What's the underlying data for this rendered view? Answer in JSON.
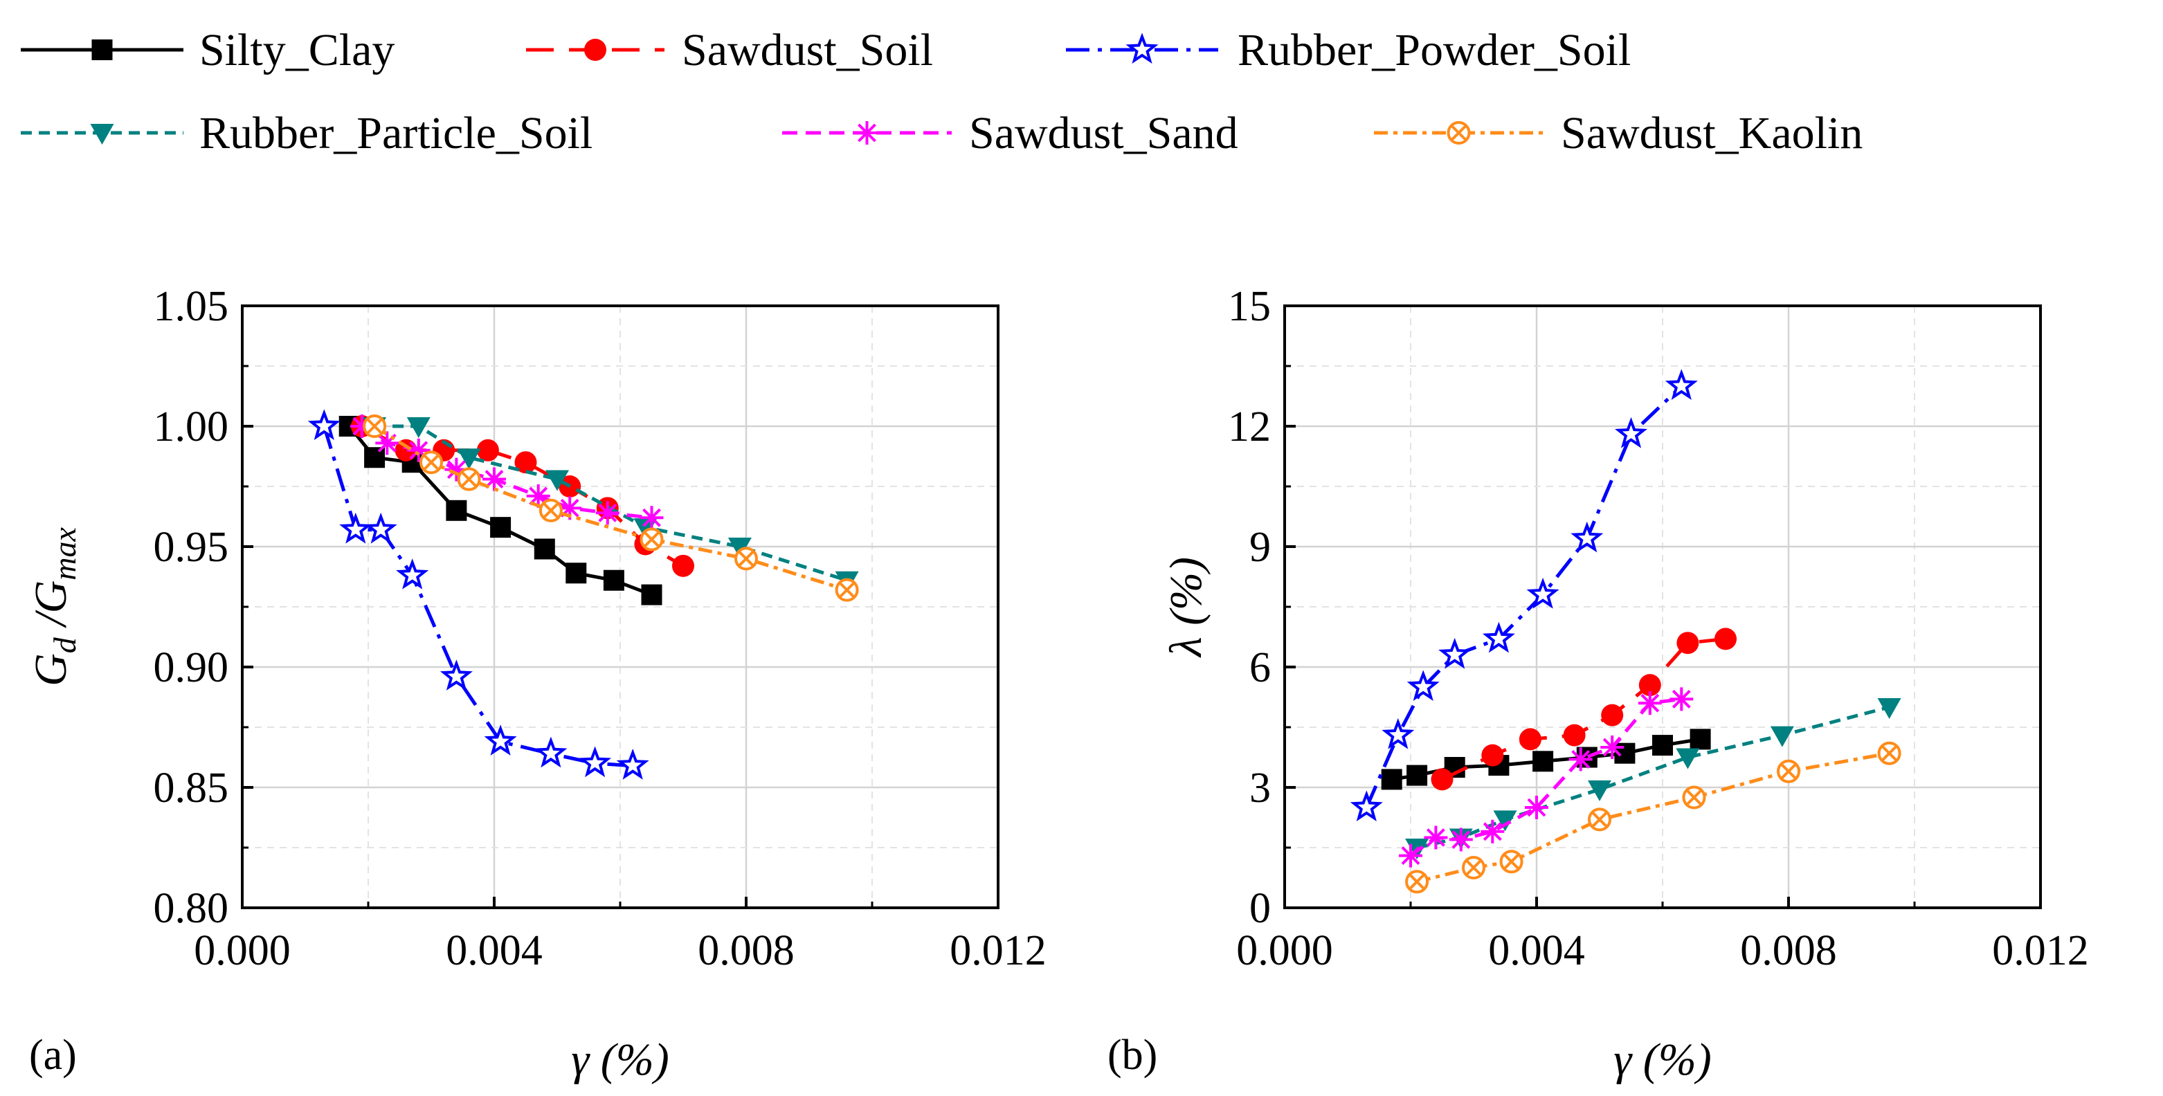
{
  "legend": {
    "items": [
      {
        "label": "Silty_Clay",
        "color": "#000000",
        "marker": "square",
        "dash": ""
      },
      {
        "label": "Sawdust_Soil",
        "color": "#ff0000",
        "marker": "circle",
        "dash": "40 22"
      },
      {
        "label": "Rubber_Powder_Soil",
        "color": "#0000ff",
        "marker": "star-open",
        "dash": "34 12 6 12"
      },
      {
        "label": "Rubber_Particle_Soil",
        "color": "#008080",
        "marker": "triangle-down",
        "dash": "16 10"
      },
      {
        "label": "Sawdust_Sand",
        "color": "#ff00ff",
        "marker": "asterisk",
        "dash": "22 12"
      },
      {
        "label": "Sawdust_Kaolin",
        "color": "#ff8c1a",
        "marker": "circle-x",
        "dash": "20 8 6 8"
      }
    ]
  },
  "chart_data": [
    {
      "type": "line",
      "panel_label": "(a)",
      "xlabel": "γ (%)",
      "ylabel_main": "G",
      "ylabel_sub1": "d",
      "ylabel_mid": " /G",
      "ylabel_sub2": "max",
      "xlim": [
        0,
        0.012
      ],
      "ylim": [
        0.8,
        1.05
      ],
      "xticks": [
        0,
        0.004,
        0.008,
        0.012
      ],
      "xtick_labels": [
        "0.000",
        "0.004",
        "0.008",
        "0.012"
      ],
      "yticks": [
        0.8,
        0.85,
        0.9,
        0.95,
        1.0,
        1.05
      ],
      "ytick_labels": [
        "0.80",
        "0.85",
        "0.90",
        "0.95",
        "1.00",
        "1.05"
      ],
      "grid": true,
      "series": [
        {
          "name": "Silty_Clay",
          "x": [
            0.0017,
            0.0021,
            0.0027,
            0.0034,
            0.0041,
            0.0048,
            0.0053,
            0.0059,
            0.0065
          ],
          "y": [
            1.0,
            0.987,
            0.985,
            0.965,
            0.958,
            0.949,
            0.939,
            0.936,
            0.93
          ]
        },
        {
          "name": "Sawdust_Soil",
          "x": [
            0.0019,
            0.0026,
            0.0032,
            0.0039,
            0.0045,
            0.0052,
            0.0058,
            0.0064,
            0.007
          ],
          "y": [
            1.0,
            0.99,
            0.99,
            0.99,
            0.985,
            0.975,
            0.966,
            0.951,
            0.942
          ]
        },
        {
          "name": "Rubber_Powder_Soil",
          "x": [
            0.0013,
            0.0018,
            0.0022,
            0.0027,
            0.0034,
            0.0041,
            0.0049,
            0.0056,
            0.0062
          ],
          "y": [
            1.0,
            0.957,
            0.957,
            0.938,
            0.896,
            0.869,
            0.864,
            0.86,
            0.859
          ]
        },
        {
          "name": "Rubber_Particle_Soil",
          "x": [
            0.0021,
            0.0028,
            0.0036,
            0.005,
            0.0064,
            0.0079,
            0.0096
          ],
          "y": [
            1.0,
            1.0,
            0.987,
            0.978,
            0.958,
            0.95,
            0.936
          ]
        },
        {
          "name": "Sawdust_Sand",
          "x": [
            0.0019,
            0.0023,
            0.0028,
            0.0034,
            0.004,
            0.0047,
            0.0052,
            0.0058,
            0.0065
          ],
          "y": [
            1.0,
            0.993,
            0.99,
            0.982,
            0.978,
            0.971,
            0.966,
            0.964,
            0.962
          ]
        },
        {
          "name": "Sawdust_Kaolin",
          "x": [
            0.0021,
            0.003,
            0.0036,
            0.0049,
            0.0065,
            0.008,
            0.0096
          ],
          "y": [
            1.0,
            0.985,
            0.978,
            0.965,
            0.953,
            0.945,
            0.932
          ]
        }
      ]
    },
    {
      "type": "line",
      "panel_label": "(b)",
      "xlabel": "γ (%)",
      "ylabel": "λ (%)",
      "xlim": [
        0,
        0.012
      ],
      "ylim": [
        0,
        15
      ],
      "xticks": [
        0,
        0.004,
        0.008,
        0.012
      ],
      "xtick_labels": [
        "0.000",
        "0.004",
        "0.008",
        "0.012"
      ],
      "yticks": [
        0,
        3,
        6,
        9,
        12,
        15
      ],
      "ytick_labels": [
        "0",
        "3",
        "6",
        "9",
        "12",
        "15"
      ],
      "grid": true,
      "series": [
        {
          "name": "Silty_Clay",
          "x": [
            0.0017,
            0.0021,
            0.0027,
            0.0034,
            0.0041,
            0.0048,
            0.0054,
            0.006,
            0.0066
          ],
          "y": [
            3.2,
            3.3,
            3.5,
            3.55,
            3.65,
            3.75,
            3.85,
            4.05,
            4.2
          ]
        },
        {
          "name": "Sawdust_Soil",
          "x": [
            0.0025,
            0.0033,
            0.0039,
            0.0046,
            0.0052,
            0.0058,
            0.0064,
            0.007
          ],
          "y": [
            3.2,
            3.8,
            4.2,
            4.3,
            4.8,
            5.55,
            6.6,
            6.7
          ]
        },
        {
          "name": "Rubber_Powder_Soil",
          "x": [
            0.0013,
            0.0018,
            0.0022,
            0.0027,
            0.0034,
            0.0041,
            0.0048,
            0.0055,
            0.0063
          ],
          "y": [
            2.5,
            4.3,
            5.5,
            6.3,
            6.7,
            7.8,
            9.2,
            11.8,
            13.0
          ]
        },
        {
          "name": "Rubber_Particle_Soil",
          "x": [
            0.0021,
            0.0028,
            0.0035,
            0.005,
            0.0064,
            0.0079,
            0.0096
          ],
          "y": [
            1.5,
            1.75,
            2.2,
            2.95,
            3.75,
            4.3,
            5.0
          ]
        },
        {
          "name": "Sawdust_Sand",
          "x": [
            0.002,
            0.0024,
            0.0028,
            0.0033,
            0.004,
            0.0047,
            0.0052,
            0.0058,
            0.0063
          ],
          "y": [
            1.3,
            1.75,
            1.7,
            1.9,
            2.5,
            3.7,
            4.0,
            5.1,
            5.2
          ]
        },
        {
          "name": "Sawdust_Kaolin",
          "x": [
            0.0021,
            0.003,
            0.0036,
            0.005,
            0.0065,
            0.008,
            0.0096
          ],
          "y": [
            0.65,
            1.0,
            1.15,
            2.2,
            2.75,
            3.4,
            3.85
          ]
        }
      ]
    }
  ]
}
